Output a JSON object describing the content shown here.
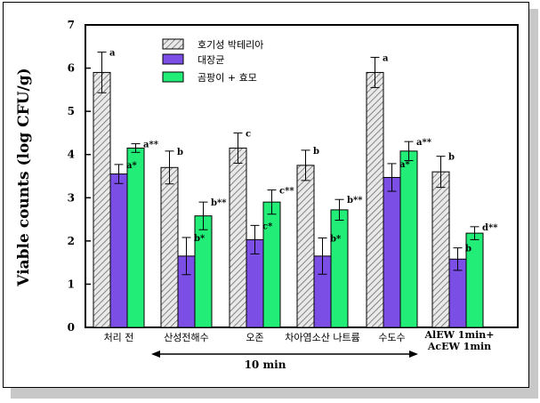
{
  "chart_data": {
    "type": "bar",
    "title": "",
    "xlabel": "",
    "ylabel": "Viable counts  (log CFU/g)",
    "ylim": [
      0,
      7
    ],
    "yticks": [
      "0",
      "1",
      "2",
      "3",
      "4",
      "5",
      "6",
      "7"
    ],
    "grid": false,
    "legend_position": "top-left",
    "categories": [
      "처리 전",
      "산성전해수",
      "오존",
      "차아염소산 나트륨",
      "수도수",
      [
        "AlEW 1min+",
        "AcEW 1min"
      ]
    ],
    "period_label": "10 min",
    "series": [
      {
        "name": "호기성 박테리아",
        "color": "#e8e8e8",
        "pattern": "hatch",
        "values": [
          5.9,
          3.7,
          4.15,
          3.75,
          5.9,
          3.6
        ],
        "errors": [
          0.47,
          0.38,
          0.35,
          0.35,
          0.35,
          0.36
        ],
        "labels": [
          "a",
          "b",
          "c",
          "b",
          "a",
          "b"
        ]
      },
      {
        "name": "대장균",
        "color": "#7b4fe6",
        "pattern": "solid",
        "values": [
          3.55,
          1.65,
          2.03,
          1.65,
          3.47,
          1.58
        ],
        "errors": [
          0.22,
          0.43,
          0.33,
          0.42,
          0.32,
          0.26
        ],
        "labels": [
          "a*",
          "b*",
          "c*",
          "b*",
          "a*",
          "b"
        ]
      },
      {
        "name": "곰팡이 + 효모",
        "color": "#22ee77",
        "pattern": "solid",
        "values": [
          4.15,
          2.58,
          2.9,
          2.72,
          4.08,
          2.18
        ],
        "errors": [
          0.1,
          0.32,
          0.28,
          0.24,
          0.22,
          0.15
        ],
        "labels": [
          "a**",
          "b**",
          "c**",
          "b**",
          "a**",
          "d**"
        ]
      }
    ]
  }
}
